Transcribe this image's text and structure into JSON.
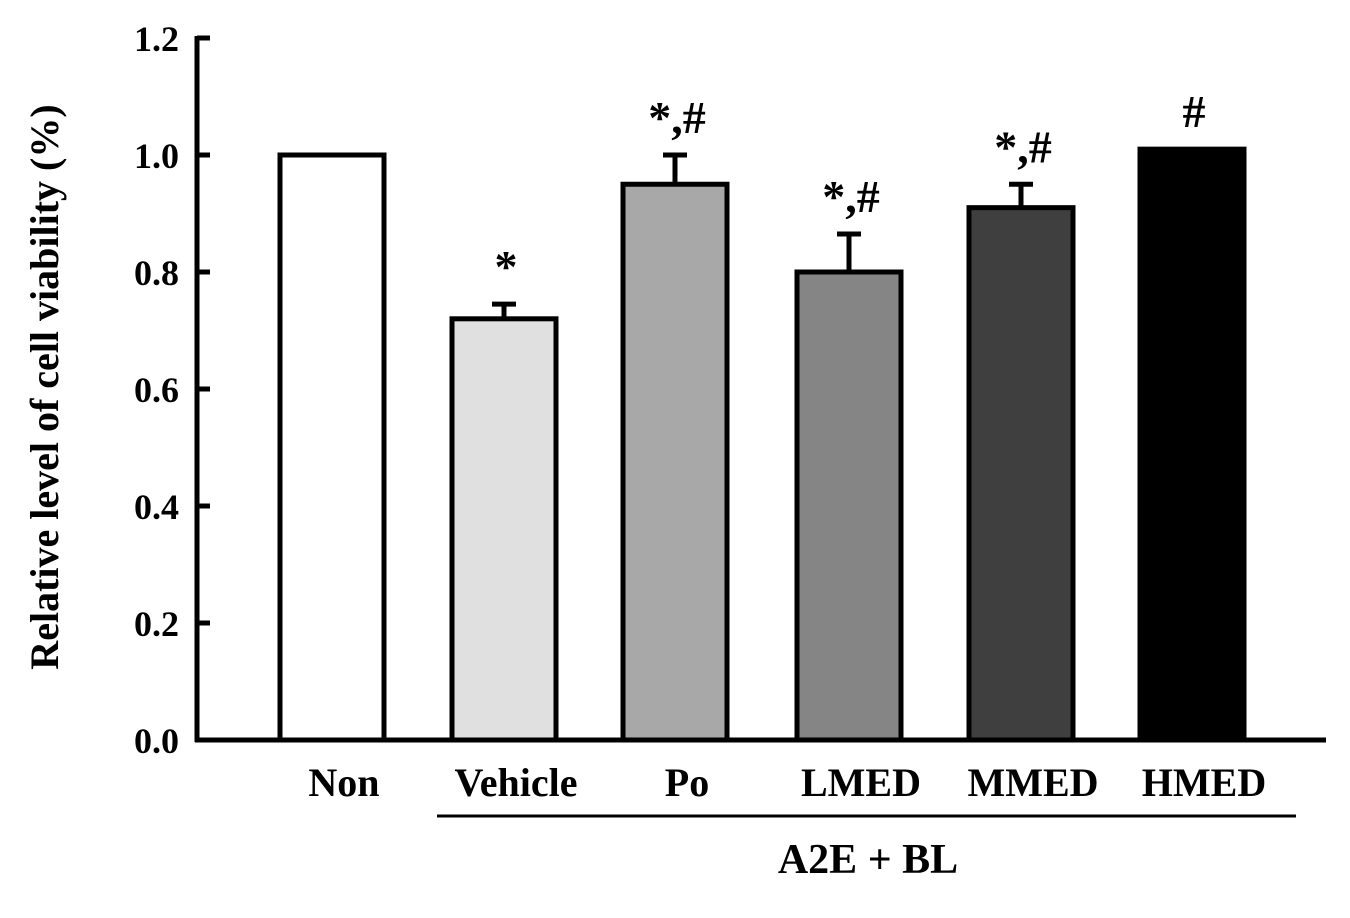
{
  "chart_data": {
    "type": "bar",
    "title": "",
    "ylabel": "Relative level of cell viability (%)",
    "xlabel": "",
    "ylim": [
      0,
      1.2
    ],
    "yticks": [
      "0.0",
      "0.2",
      "0.4",
      "0.6",
      "0.8",
      "1.0",
      "1.2"
    ],
    "categories": [
      "Non",
      "Vehicle",
      "Po",
      "LMED",
      "MMED",
      "HMED"
    ],
    "values": [
      1.0,
      0.72,
      0.95,
      0.8,
      0.91,
      1.01
    ],
    "error": [
      0,
      0.025,
      0.05,
      0.065,
      0.04,
      0
    ],
    "annotations": [
      "",
      "*",
      "*,#",
      "*,#",
      "*,#",
      "#"
    ],
    "bar_colors": [
      "#ffffff",
      "#e0e0e0",
      "#a8a8a8",
      "#858585",
      "#3f3f3f",
      "#000000"
    ],
    "group_label": "A2E + BL",
    "grid": false
  }
}
